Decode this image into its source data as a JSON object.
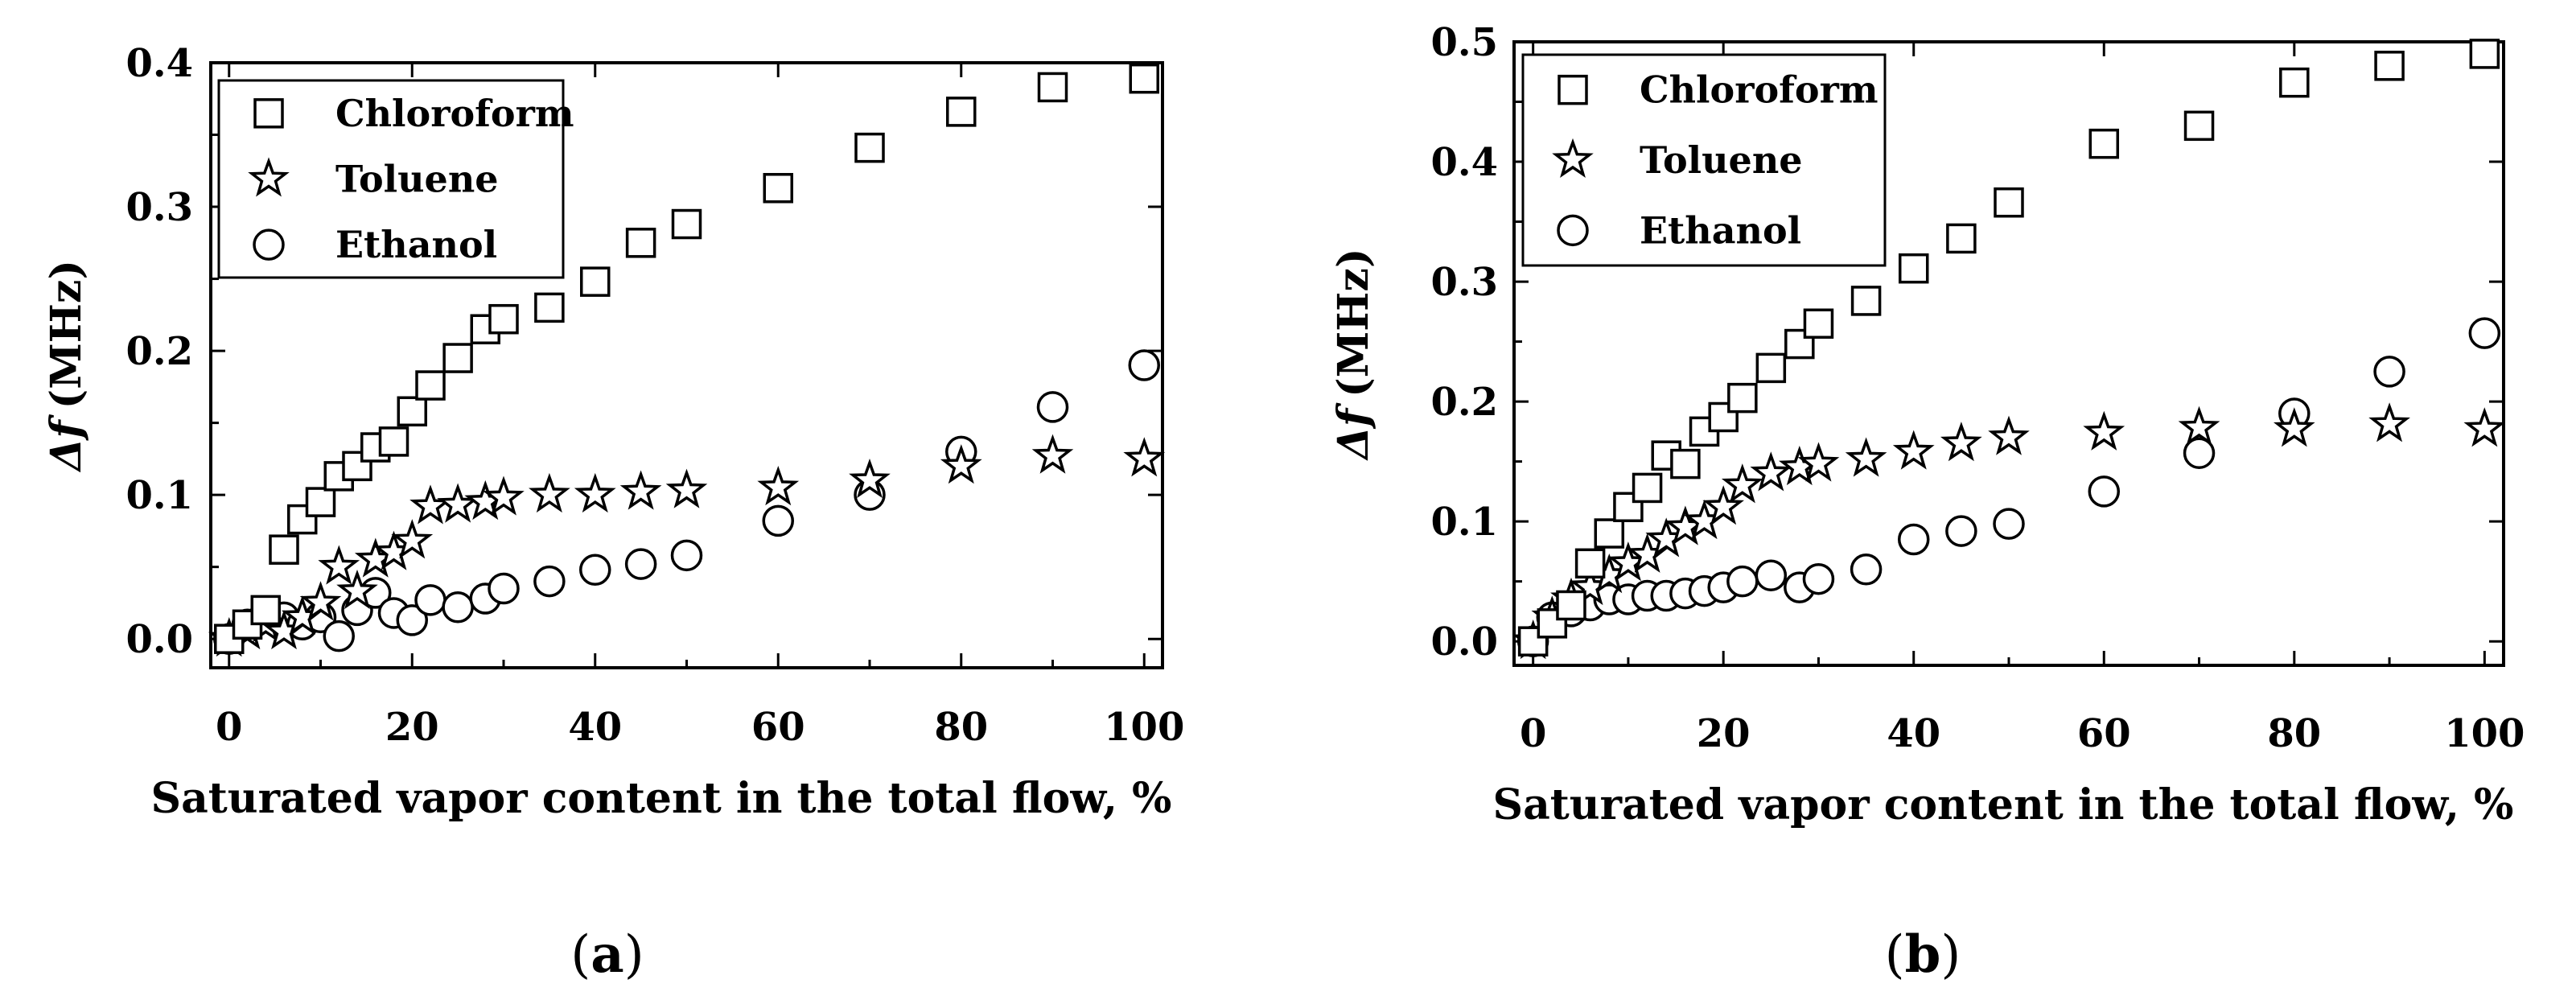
{
  "chart_data": [
    {
      "type": "scatter",
      "panel_label": "a",
      "xlabel": "Saturated vapor content in the total flow, %",
      "ylabel": "(MHz)",
      "ylabel_symbol": "Δf",
      "xlim": [
        -2,
        102
      ],
      "ylim": [
        -0.02,
        0.4
      ],
      "xticks": [
        0,
        20,
        40,
        60,
        80,
        100
      ],
      "yticks": [
        0.0,
        0.1,
        0.2,
        0.3,
        0.4
      ],
      "legend_position": "top-left",
      "series": [
        {
          "name": "Chloroform",
          "marker": "square",
          "x": [
            0,
            2,
            4,
            6,
            8,
            10,
            12,
            14,
            16,
            18,
            20,
            22,
            25,
            28,
            30,
            35,
            40,
            45,
            50,
            60,
            70,
            80,
            90,
            100
          ],
          "y": [
            0.0,
            0.01,
            0.02,
            0.062,
            0.083,
            0.095,
            0.113,
            0.12,
            0.133,
            0.137,
            0.158,
            0.176,
            0.195,
            0.215,
            0.222,
            0.23,
            0.248,
            0.275,
            0.288,
            0.313,
            0.341,
            0.366,
            0.383,
            0.389
          ]
        },
        {
          "name": "Toluene",
          "marker": "star",
          "x": [
            0,
            2,
            4,
            6,
            8,
            10,
            12,
            14,
            16,
            18,
            20,
            22,
            25,
            28,
            30,
            35,
            40,
            45,
            50,
            60,
            70,
            80,
            90,
            100
          ],
          "y": [
            0.0,
            0.005,
            0.01,
            0.005,
            0.015,
            0.025,
            0.05,
            0.033,
            0.055,
            0.06,
            0.068,
            0.092,
            0.093,
            0.095,
            0.098,
            0.1,
            0.1,
            0.102,
            0.103,
            0.105,
            0.11,
            0.12,
            0.127,
            0.125
          ]
        },
        {
          "name": "Ethanol",
          "marker": "circle",
          "x": [
            0,
            2,
            4,
            6,
            8,
            10,
            12,
            14,
            16,
            18,
            20,
            22,
            25,
            28,
            30,
            35,
            40,
            45,
            50,
            60,
            70,
            80,
            90,
            100
          ],
          "y": [
            0.0,
            0.01,
            0.018,
            0.015,
            0.01,
            0.015,
            0.002,
            0.02,
            0.032,
            0.018,
            0.013,
            0.027,
            0.022,
            0.028,
            0.035,
            0.04,
            0.048,
            0.052,
            0.058,
            0.082,
            0.1,
            0.13,
            0.161,
            0.19
          ]
        }
      ]
    },
    {
      "type": "scatter",
      "panel_label": "b",
      "xlabel": "Saturated vapor content in the total flow, %",
      "ylabel": "(MHz)",
      "ylabel_symbol": "Δf",
      "xlim": [
        -2,
        102
      ],
      "ylim": [
        -0.02,
        0.5
      ],
      "xticks": [
        0,
        20,
        40,
        60,
        80,
        100
      ],
      "yticks": [
        0.0,
        0.1,
        0.2,
        0.3,
        0.4,
        0.5
      ],
      "legend_position": "top-left",
      "series": [
        {
          "name": "Chloroform",
          "marker": "square",
          "x": [
            0,
            2,
            4,
            6,
            8,
            10,
            12,
            14,
            16,
            18,
            20,
            22,
            25,
            28,
            30,
            35,
            40,
            45,
            50,
            60,
            70,
            80,
            90,
            100
          ],
          "y": [
            0.0,
            0.015,
            0.03,
            0.065,
            0.09,
            0.112,
            0.128,
            0.155,
            0.148,
            0.175,
            0.187,
            0.203,
            0.228,
            0.248,
            0.265,
            0.284,
            0.311,
            0.336,
            0.366,
            0.415,
            0.43,
            0.466,
            0.48,
            0.49
          ]
        },
        {
          "name": "Toluene",
          "marker": "star",
          "x": [
            0,
            2,
            4,
            6,
            8,
            10,
            12,
            14,
            16,
            18,
            20,
            22,
            25,
            28,
            30,
            35,
            40,
            45,
            50,
            60,
            70,
            80,
            90,
            100
          ],
          "y": [
            0.0,
            0.02,
            0.035,
            0.045,
            0.055,
            0.065,
            0.072,
            0.085,
            0.095,
            0.1,
            0.112,
            0.13,
            0.14,
            0.145,
            0.148,
            0.152,
            0.158,
            0.165,
            0.17,
            0.174,
            0.178,
            0.177,
            0.181,
            0.177
          ]
        },
        {
          "name": "Ethanol",
          "marker": "circle",
          "x": [
            0,
            2,
            4,
            6,
            8,
            10,
            12,
            14,
            16,
            18,
            20,
            22,
            25,
            28,
            30,
            35,
            40,
            45,
            50,
            60,
            70,
            80,
            90,
            100
          ],
          "y": [
            0.0,
            0.02,
            0.025,
            0.03,
            0.035,
            0.035,
            0.038,
            0.038,
            0.04,
            0.042,
            0.045,
            0.05,
            0.055,
            0.045,
            0.052,
            0.06,
            0.085,
            0.092,
            0.098,
            0.125,
            0.157,
            0.19,
            0.225,
            0.257
          ]
        }
      ]
    }
  ]
}
